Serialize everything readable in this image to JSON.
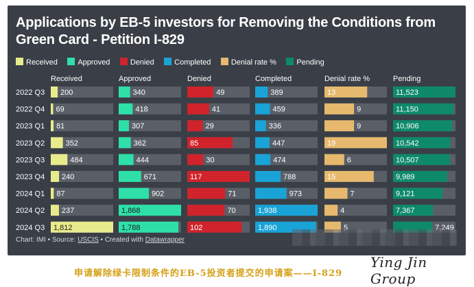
{
  "title": "Applications by EB-5 investors for Removing the Conditions from Green Card - Petition I-829",
  "legend": [
    {
      "label": "Received",
      "color": "#e8eb8c"
    },
    {
      "label": "Approved",
      "color": "#2ee0a8"
    },
    {
      "label": "Denied",
      "color": "#d0232b"
    },
    {
      "label": "Completed",
      "color": "#1aa3d6"
    },
    {
      "label": "Denial rate %",
      "color": "#e6b96e"
    },
    {
      "label": "Pending",
      "color": "#0e8a6b"
    }
  ],
  "chart_data": {
    "type": "table",
    "title": "Applications by EB-5 investors for Removing the Conditions from Green Card - Petition I-829",
    "categories": [
      "2022 Q3",
      "2022 Q4",
      "2023 Q1",
      "2023 Q2",
      "2023 Q3",
      "2023 Q4",
      "2024 Q1",
      "2024 Q2",
      "2024 Q3"
    ],
    "series": [
      {
        "name": "Received",
        "color": "#e8eb8c",
        "max": 1812,
        "labels": [
          "200",
          "69",
          "81",
          "352",
          "484",
          "240",
          "87",
          "237",
          "1,812"
        ],
        "values": [
          200,
          69,
          81,
          352,
          484,
          240,
          87,
          237,
          1812
        ]
      },
      {
        "name": "Approved",
        "color": "#2ee0a8",
        "max": 1868,
        "labels": [
          "340",
          "418",
          "307",
          "362",
          "444",
          "671",
          "902",
          "1,868",
          "1,788"
        ],
        "values": [
          340,
          418,
          307,
          362,
          444,
          671,
          902,
          1868,
          1788
        ]
      },
      {
        "name": "Denied",
        "color": "#d0232b",
        "max": 117,
        "labels": [
          "49",
          "41",
          "29",
          "85",
          "30",
          "117",
          "71",
          "70",
          "102"
        ],
        "values": [
          49,
          41,
          29,
          85,
          30,
          117,
          71,
          70,
          102
        ]
      },
      {
        "name": "Completed",
        "color": "#1aa3d6",
        "max": 1938,
        "labels": [
          "389",
          "459",
          "336",
          "447",
          "474",
          "788",
          "973",
          "1,938",
          "1,890"
        ],
        "values": [
          389,
          459,
          336,
          447,
          474,
          788,
          973,
          1938,
          1890
        ]
      },
      {
        "name": "Denial rate %",
        "color": "#e6b96e",
        "max": 19,
        "labels": [
          "13",
          "9",
          "9",
          "19",
          "6",
          "15",
          "7",
          "4",
          "5"
        ],
        "values": [
          13,
          9,
          9,
          19,
          6,
          15,
          7,
          4,
          5
        ]
      },
      {
        "name": "Pending",
        "color": "#0e8a6b",
        "max": 11523,
        "labels": [
          "11,523",
          "11,150",
          "10,906",
          "10,542",
          "10,507",
          "9,989",
          "9,121",
          "7,367",
          "7,249"
        ],
        "values": [
          11523,
          11150,
          10906,
          10542,
          10507,
          9989,
          9121,
          7367,
          7249
        ]
      }
    ]
  },
  "footer": {
    "prefix": "Chart: IMI • Source: ",
    "source": "USCIS",
    "middle": " • Created with ",
    "tool": "Datawrapper"
  },
  "caption": "申请解除绿卡限制条件的EB-5投资者提交的申请案——I-829",
  "brand": "Ying Jin Group"
}
